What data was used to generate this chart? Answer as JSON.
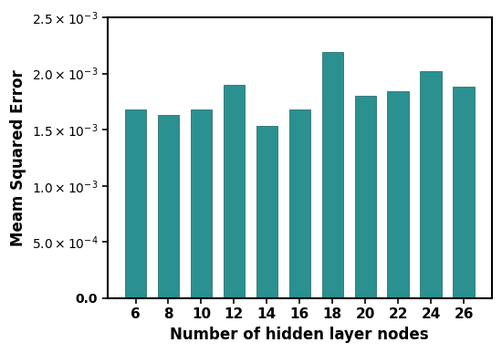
{
  "categories": [
    6,
    8,
    10,
    12,
    14,
    16,
    18,
    20,
    22,
    24,
    26
  ],
  "values": [
    0.00168,
    0.00163,
    0.00168,
    0.0019,
    0.00153,
    0.00168,
    0.00219,
    0.0018,
    0.00184,
    0.00202,
    0.00188
  ],
  "bar_color": "#2a9090",
  "xlabel": "Number of hidden layer nodes",
  "ylabel": "Meam Squared Error",
  "ylim": [
    0,
    0.0025
  ],
  "ytick_values": [
    0.0,
    0.0005,
    0.001,
    0.0015,
    0.002,
    0.0025
  ],
  "ytick_labels": [
    "0.0",
    "5.0×10⁻⁴",
    "1.0×10⁻³",
    "1.5×10⁻³",
    "2.0×10⁻³",
    "2.5×10⁻³"
  ],
  "bar_width": 0.65,
  "edge_color": "#1a6060"
}
